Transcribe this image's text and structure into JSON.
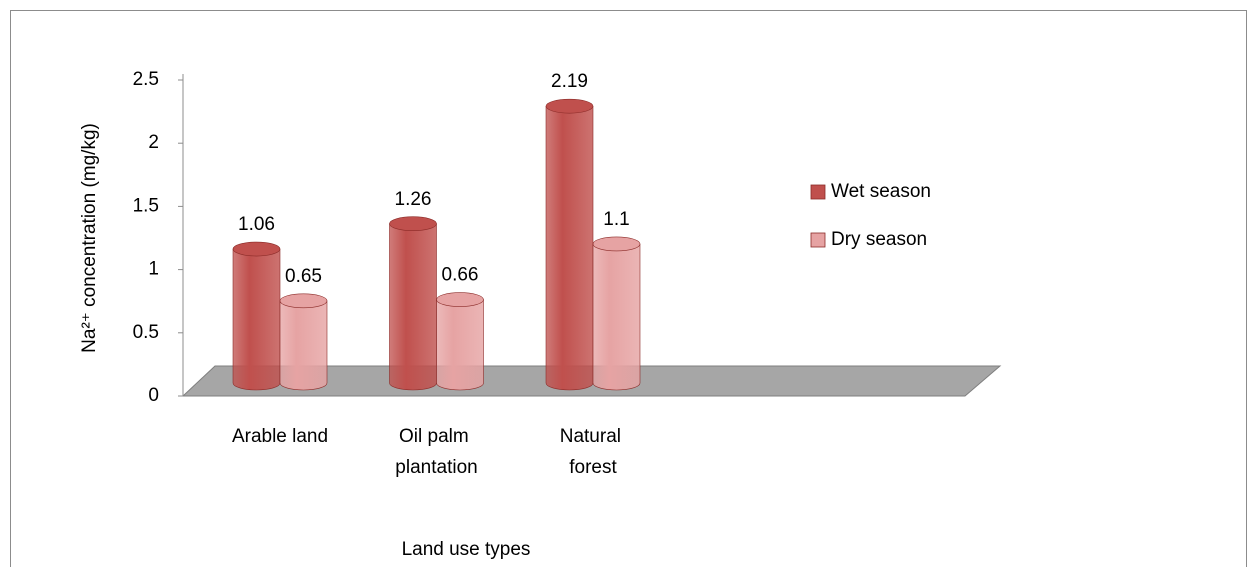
{
  "chart_data": {
    "type": "bar3d",
    "categories": [
      "Arable land",
      "Oil palm plantation",
      "Natural forest"
    ],
    "series": [
      {
        "name": "Wet season",
        "color": "#c0504d",
        "values": [
          1.06,
          1.26,
          2.19
        ]
      },
      {
        "name": "Dry season",
        "color": "#e6a3a3",
        "values": [
          0.65,
          0.66,
          1.1
        ]
      }
    ],
    "ylim": [
      0,
      2.5
    ],
    "yticks": [
      0,
      0.5,
      1,
      1.5,
      2,
      2.5
    ],
    "y_label": "Na²⁺ concentration (mg/kg)",
    "x_label": "Land use types",
    "legend": "right"
  }
}
